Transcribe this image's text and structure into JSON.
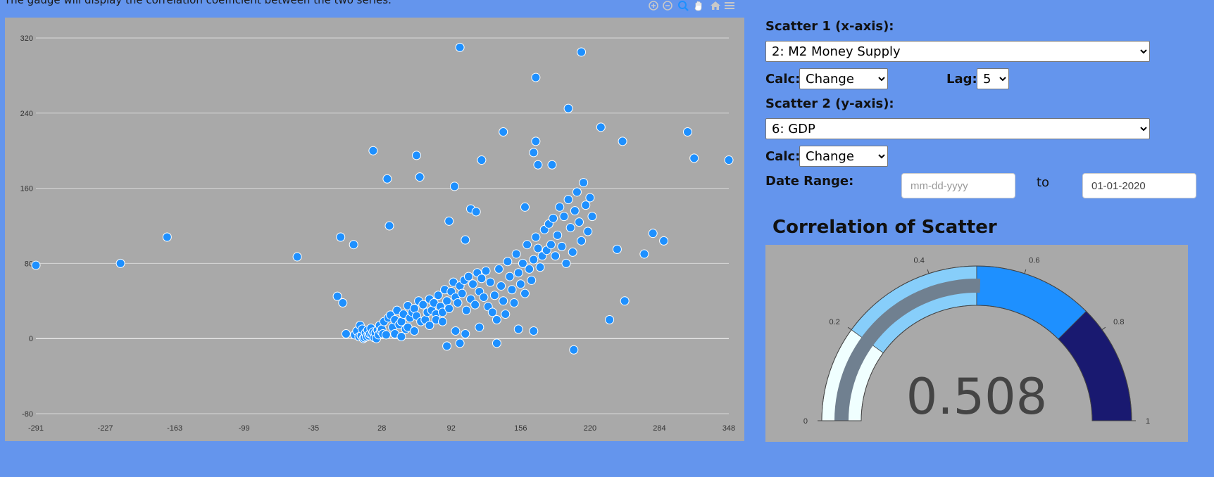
{
  "header": {
    "note": "The gauge will display the correlation coefficient between the two series."
  },
  "modebar": {
    "icons": [
      "zoom-in-icon",
      "zoom-out-icon",
      "autoscale-icon",
      "pan-icon",
      "home-icon",
      "menu-icon"
    ],
    "active_color": "#1e90ff",
    "color": "#c8c8c8"
  },
  "controls": {
    "scatter1_label": "Scatter 1 (x-axis):",
    "scatter1_value": "2: M2 Money Supply",
    "calc1_label": "Calc:",
    "calc1_value": "Change",
    "lag_label": "Lag:",
    "lag_value": "5",
    "scatter2_label": "Scatter 2 (y-axis):",
    "scatter2_value": "6: GDP",
    "calc2_label": "Calc:",
    "calc2_value": "Change",
    "date_range_label": "Date Range:",
    "date_from_placeholder": "mm-dd-yyyy",
    "to_label": "to",
    "date_to_value": "01-01-2020"
  },
  "chart_data": [
    {
      "type": "scatter",
      "x_ticks": [
        -291,
        -227,
        -163,
        -99,
        -35,
        28,
        92,
        156,
        220,
        284,
        348
      ],
      "y_ticks": [
        -80,
        0,
        80,
        160,
        240,
        320
      ],
      "xlim": [
        -291,
        348
      ],
      "ylim": [
        -80,
        320
      ],
      "grid": true,
      "marker_color": "#1e90ff",
      "marker_edge": "#ffffff",
      "points": [
        [
          -291,
          78
        ],
        [
          -213,
          80
        ],
        [
          -170,
          108
        ],
        [
          -50,
          87
        ],
        [
          -10,
          108
        ],
        [
          2,
          100
        ],
        [
          -13,
          45
        ],
        [
          -8,
          38
        ],
        [
          -5,
          5
        ],
        [
          3,
          4
        ],
        [
          5,
          8
        ],
        [
          7,
          2
        ],
        [
          8,
          14
        ],
        [
          9,
          3
        ],
        [
          10,
          10
        ],
        [
          11,
          0
        ],
        [
          12,
          1
        ],
        [
          13,
          6
        ],
        [
          14,
          2
        ],
        [
          15,
          9
        ],
        [
          16,
          3
        ],
        [
          17,
          5
        ],
        [
          18,
          11
        ],
        [
          19,
          4
        ],
        [
          20,
          7
        ],
        [
          21,
          1
        ],
        [
          22,
          6
        ],
        [
          23,
          0
        ],
        [
          24,
          9
        ],
        [
          25,
          4
        ],
        [
          26,
          14
        ],
        [
          27,
          8
        ],
        [
          28,
          10
        ],
        [
          29,
          5
        ],
        [
          30,
          18
        ],
        [
          32,
          4
        ],
        [
          34,
          22
        ],
        [
          36,
          25
        ],
        [
          38,
          12
        ],
        [
          40,
          20
        ],
        [
          42,
          30
        ],
        [
          44,
          15
        ],
        [
          46,
          18
        ],
        [
          48,
          26
        ],
        [
          50,
          10
        ],
        [
          52,
          35
        ],
        [
          54,
          22
        ],
        [
          56,
          28
        ],
        [
          58,
          32
        ],
        [
          60,
          24
        ],
        [
          62,
          40
        ],
        [
          64,
          18
        ],
        [
          66,
          36
        ],
        [
          68,
          20
        ],
        [
          70,
          28
        ],
        [
          72,
          42
        ],
        [
          74,
          30
        ],
        [
          76,
          38
        ],
        [
          78,
          26
        ],
        [
          80,
          46
        ],
        [
          82,
          34
        ],
        [
          84,
          28
        ],
        [
          86,
          52
        ],
        [
          88,
          40
        ],
        [
          90,
          32
        ],
        [
          92,
          50
        ],
        [
          94,
          60
        ],
        [
          96,
          44
        ],
        [
          98,
          38
        ],
        [
          100,
          56
        ],
        [
          102,
          48
        ],
        [
          104,
          62
        ],
        [
          106,
          30
        ],
        [
          108,
          66
        ],
        [
          110,
          42
        ],
        [
          112,
          58
        ],
        [
          114,
          36
        ],
        [
          116,
          70
        ],
        [
          118,
          50
        ],
        [
          120,
          64
        ],
        [
          122,
          44
        ],
        [
          124,
          72
        ],
        [
          126,
          34
        ],
        [
          128,
          60
        ],
        [
          130,
          28
        ],
        [
          132,
          46
        ],
        [
          134,
          20
        ],
        [
          136,
          74
        ],
        [
          138,
          56
        ],
        [
          140,
          40
        ],
        [
          142,
          26
        ],
        [
          144,
          82
        ],
        [
          146,
          66
        ],
        [
          148,
          52
        ],
        [
          150,
          38
        ],
        [
          152,
          90
        ],
        [
          154,
          70
        ],
        [
          156,
          58
        ],
        [
          158,
          80
        ],
        [
          160,
          48
        ],
        [
          162,
          100
        ],
        [
          164,
          74
        ],
        [
          166,
          62
        ],
        [
          168,
          84
        ],
        [
          170,
          108
        ],
        [
          172,
          96
        ],
        [
          174,
          76
        ],
        [
          176,
          88
        ],
        [
          178,
          116
        ],
        [
          180,
          94
        ],
        [
          182,
          122
        ],
        [
          184,
          100
        ],
        [
          186,
          128
        ],
        [
          188,
          88
        ],
        [
          190,
          110
        ],
        [
          192,
          140
        ],
        [
          194,
          98
        ],
        [
          196,
          130
        ],
        [
          198,
          80
        ],
        [
          200,
          148
        ],
        [
          202,
          118
        ],
        [
          204,
          92
        ],
        [
          206,
          136
        ],
        [
          208,
          156
        ],
        [
          210,
          124
        ],
        [
          212,
          104
        ],
        [
          214,
          166
        ],
        [
          216,
          142
        ],
        [
          218,
          114
        ],
        [
          220,
          150
        ],
        [
          222,
          130
        ],
        [
          20,
          200
        ],
        [
          33,
          170
        ],
        [
          35,
          120
        ],
        [
          60,
          195
        ],
        [
          63,
          172
        ],
        [
          90,
          125
        ],
        [
          95,
          162
        ],
        [
          105,
          105
        ],
        [
          110,
          138
        ],
        [
          115,
          135
        ],
        [
          120,
          190
        ],
        [
          140,
          220
        ],
        [
          160,
          140
        ],
        [
          168,
          198
        ],
        [
          170,
          210
        ],
        [
          172,
          185
        ],
        [
          185,
          185
        ],
        [
          200,
          245
        ],
        [
          230,
          225
        ],
        [
          250,
          210
        ],
        [
          310,
          220
        ],
        [
          316,
          192
        ],
        [
          348,
          190
        ],
        [
          100,
          310
        ],
        [
          212,
          305
        ],
        [
          170,
          278
        ],
        [
          245,
          95
        ],
        [
          270,
          90
        ],
        [
          278,
          112
        ],
        [
          288,
          104
        ],
        [
          252,
          40
        ],
        [
          238,
          20
        ],
        [
          205,
          -12
        ],
        [
          88,
          -8
        ],
        [
          100,
          -5
        ],
        [
          134,
          -5
        ],
        [
          168,
          8
        ],
        [
          154,
          10
        ],
        [
          118,
          12
        ],
        [
          105,
          5
        ],
        [
          96,
          8
        ],
        [
          40,
          5
        ],
        [
          46,
          2
        ],
        [
          52,
          12
        ],
        [
          58,
          8
        ],
        [
          72,
          14
        ],
        [
          78,
          20
        ],
        [
          84,
          18
        ]
      ]
    },
    {
      "type": "gauge",
      "title": "Correlation of Scatter",
      "value": 0.508,
      "range": [
        0,
        1
      ],
      "ticks": [
        "0",
        "0.2",
        "0.4",
        "0.6",
        "0.8",
        "1"
      ],
      "steps": [
        {
          "from": 0,
          "to": 0.2,
          "color": "#f0ffff"
        },
        {
          "from": 0.2,
          "to": 0.5,
          "color": "#87cefa"
        },
        {
          "from": 0.5,
          "to": 0.75,
          "color": "#1e90ff"
        },
        {
          "from": 0.75,
          "to": 1,
          "color": "#191970"
        }
      ],
      "bar_color": "#708090"
    }
  ]
}
